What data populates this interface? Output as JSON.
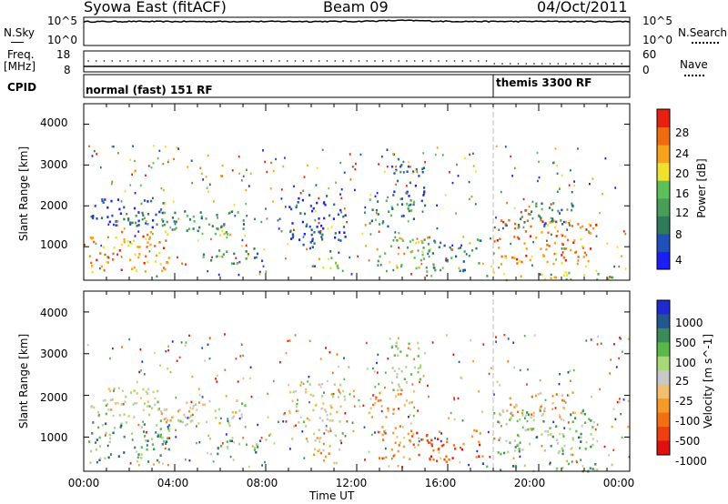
{
  "header": {
    "station": "Syowa East (fitACF)",
    "beam": "Beam 09",
    "date": "04/Oct/2011"
  },
  "left_labels": {
    "nsky": "N.Sky",
    "freq": "Freq.",
    "mhz": "[MHz]",
    "cpid": "CPID"
  },
  "right_labels": {
    "nsearch": "N.Search",
    "nave": "Nave"
  },
  "noise_axis": {
    "left_top": "10^5",
    "left_bottom": "10^0",
    "right_top": "10^5",
    "right_bottom": "10^0"
  },
  "freq_axis": {
    "left_top": "18",
    "left_bottom": "8",
    "right_top": "60",
    "right_bottom": "0"
  },
  "cpid": {
    "mode1": "normal (fast) 151 RF",
    "mode2": "themis 3300 RF"
  },
  "time_axis": {
    "label": "Time UT",
    "ticks": [
      "00:00",
      "04:00",
      "08:00",
      "12:00",
      "16:00",
      "20:00",
      "00:00"
    ]
  },
  "range_axis": {
    "label": "Slant Range [km]",
    "ticks": [
      "1000",
      "2000",
      "3000",
      "4000"
    ]
  },
  "power_colorbar": {
    "label": "Power [dB]",
    "ticks": [
      "4",
      "8",
      "12",
      "16",
      "20",
      "24",
      "28"
    ],
    "colors": [
      "#1b1ef5",
      "#2050b8",
      "#2f7a5a",
      "#4a9d55",
      "#5cc05a",
      "#f0e030",
      "#f6a21c",
      "#f06a10",
      "#e82010"
    ]
  },
  "velocity_colorbar": {
    "label": "Velocity [m s^-1]",
    "ticks": [
      "1000",
      "500",
      "100",
      "25",
      "-25",
      "-100",
      "-500",
      "-1000"
    ],
    "colors": [
      "#1f2bd0",
      "#24578f",
      "#3a8a5a",
      "#5ab84a",
      "#a8d878",
      "#c8c8c8",
      "#f0c070",
      "#f39a28",
      "#f26f12",
      "#ee3f10",
      "#e01010"
    ]
  },
  "chart_data": [
    {
      "type": "line",
      "title": "N.Sky / N.Search",
      "x_range": [
        "00:00",
        "24:00"
      ],
      "y_scale": "log",
      "ylim": [
        1,
        100000
      ],
      "series": [
        {
          "name": "N.Sky",
          "x": [
            0,
            2,
            4,
            6,
            8,
            10,
            12,
            14,
            16,
            18,
            20,
            22,
            24
          ],
          "values": [
            20000,
            22000,
            21000,
            22000,
            21500,
            22000,
            22500,
            35000,
            23000,
            22000,
            22500,
            21500,
            21000
          ]
        }
      ]
    },
    {
      "type": "scatter",
      "title": "Freq / Nave",
      "x_range": [
        "00:00",
        "24:00"
      ],
      "series": [
        {
          "name": "Freq",
          "ylim": [
            8,
            18
          ],
          "values": [
            11.5,
            11.5,
            11.5,
            11.5,
            11.5,
            11.5,
            11.5,
            11.5,
            11.5,
            11,
            11,
            11,
            11
          ]
        },
        {
          "name": "Nave",
          "ylim": [
            0,
            60
          ],
          "values": [
            25,
            25,
            25,
            25,
            25,
            25,
            25,
            25,
            25,
            22,
            22,
            22,
            22
          ]
        }
      ]
    },
    {
      "type": "heatmap",
      "title": "Power [dB]",
      "xlabel": "Time UT",
      "ylabel": "Slant Range [km]",
      "xlim": [
        0,
        24
      ],
      "ylim": [
        180,
        4500
      ],
      "clim": [
        0,
        30
      ],
      "regions": [
        {
          "t0": 0.1,
          "t1": 3.8,
          "r0": 400,
          "r1": 1400,
          "level": 0.75
        },
        {
          "t0": 0.2,
          "t1": 3.6,
          "r0": 1500,
          "r1": 2200,
          "level": 0.15
        },
        {
          "t0": 2.2,
          "t1": 7.2,
          "r0": 1400,
          "r1": 1900,
          "level": 0.35
        },
        {
          "t0": 3.5,
          "t1": 6.8,
          "r0": 1300,
          "r1": 1500,
          "level": 0.55
        },
        {
          "t0": 5.2,
          "t1": 8.0,
          "r0": 600,
          "r1": 1000,
          "level": 0.3
        },
        {
          "t0": 9.0,
          "t1": 11.5,
          "r0": 900,
          "r1": 2300,
          "level": 0.15
        },
        {
          "t0": 9.8,
          "t1": 11.2,
          "r0": 350,
          "r1": 750,
          "level": 0.55
        },
        {
          "t0": 12.5,
          "t1": 14.5,
          "r0": 1500,
          "r1": 2200,
          "level": 0.35
        },
        {
          "t0": 12.8,
          "t1": 15.2,
          "r0": 500,
          "r1": 1300,
          "level": 0.55
        },
        {
          "t0": 13.5,
          "t1": 15.0,
          "r0": 2000,
          "r1": 3300,
          "level": 0.2
        },
        {
          "t0": 15.0,
          "t1": 17.5,
          "r0": 400,
          "r1": 1200,
          "level": 0.3
        },
        {
          "t0": 17.5,
          "t1": 23.5,
          "r0": 200,
          "r1": 400,
          "level": 0.6
        },
        {
          "t0": 18.0,
          "t1": 22.5,
          "r0": 600,
          "r1": 1700,
          "level": 0.8
        },
        {
          "t0": 18.5,
          "t1": 21.5,
          "r0": 1500,
          "r1": 2100,
          "level": 0.3
        }
      ]
    },
    {
      "type": "heatmap",
      "title": "Velocity [m s^-1]",
      "xlabel": "Time UT",
      "ylabel": "Slant Range [km]",
      "xlim": [
        0,
        24
      ],
      "ylim": [
        180,
        4500
      ],
      "clim": [
        -1000,
        1000
      ],
      "regions": [
        {
          "t0": 0.1,
          "t1": 3.8,
          "r0": 400,
          "r1": 1400,
          "level": 0.3
        },
        {
          "t0": 0.2,
          "t1": 3.6,
          "r0": 1500,
          "r1": 2200,
          "level": 0.5
        },
        {
          "t0": 2.2,
          "t1": 7.2,
          "r0": 1400,
          "r1": 1900,
          "level": 0.5
        },
        {
          "t0": 3.5,
          "t1": 6.8,
          "r0": 1300,
          "r1": 1500,
          "level": 0.5
        },
        {
          "t0": 5.2,
          "t1": 8.0,
          "r0": 600,
          "r1": 1000,
          "level": 0.3
        },
        {
          "t0": 9.0,
          "t1": 11.5,
          "r0": 900,
          "r1": 2300,
          "level": 0.5
        },
        {
          "t0": 9.8,
          "t1": 11.2,
          "r0": 350,
          "r1": 750,
          "level": 0.65
        },
        {
          "t0": 12.5,
          "t1": 14.5,
          "r0": 1500,
          "r1": 2200,
          "level": 0.7
        },
        {
          "t0": 12.8,
          "t1": 15.2,
          "r0": 500,
          "r1": 1300,
          "level": 0.75
        },
        {
          "t0": 13.5,
          "t1": 15.0,
          "r0": 2000,
          "r1": 3300,
          "level": 0.4
        },
        {
          "t0": 15.0,
          "t1": 17.5,
          "r0": 400,
          "r1": 1200,
          "level": 0.8
        },
        {
          "t0": 17.5,
          "t1": 23.5,
          "r0": 200,
          "r1": 400,
          "level": 0.3
        },
        {
          "t0": 18.0,
          "t1": 22.5,
          "r0": 600,
          "r1": 1700,
          "level": 0.35
        },
        {
          "t0": 18.5,
          "t1": 21.5,
          "r0": 1500,
          "r1": 2100,
          "level": 0.65
        }
      ]
    }
  ]
}
